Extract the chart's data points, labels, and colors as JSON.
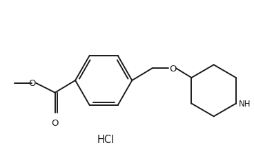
{
  "bg_color": "#ffffff",
  "line_color": "#1a1a1a",
  "line_width": 1.4,
  "font_size": 8.5,
  "figsize": [
    3.68,
    2.28
  ],
  "dpi": 100,
  "hcl_text": "HCl",
  "o_label": "O",
  "nh_label": "NH"
}
